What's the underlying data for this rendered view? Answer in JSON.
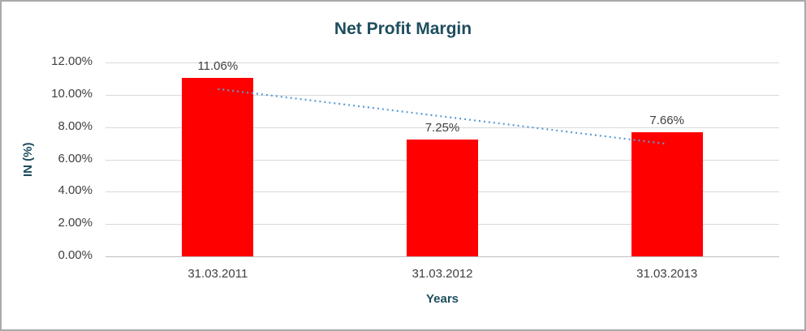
{
  "chart_data": {
    "type": "bar",
    "title": "Net Profit Margin",
    "xlabel": "Years",
    "ylabel": "IN (%)",
    "categories": [
      "31.03.2011",
      "31.03.2012",
      "31.03.2013"
    ],
    "values": [
      11.06,
      7.25,
      7.66
    ],
    "data_labels": [
      "11.06%",
      "7.25%",
      "7.66%"
    ],
    "y_ticks": [
      "0.00%",
      "2.00%",
      "4.00%",
      "6.00%",
      "8.00%",
      "10.00%",
      "12.00%"
    ],
    "ylim": [
      0,
      12
    ],
    "grid": true,
    "legend": "none",
    "bar_color": "#FF0000",
    "colors": {
      "title_text": "#1f4e5f",
      "axis_text": "#404040",
      "gridline": "#d9d9d9"
    },
    "trendline": {
      "type": "linear",
      "style": "dotted",
      "color": "#5B9BD5",
      "start_value": 10.36,
      "end_value": 6.96
    }
  }
}
